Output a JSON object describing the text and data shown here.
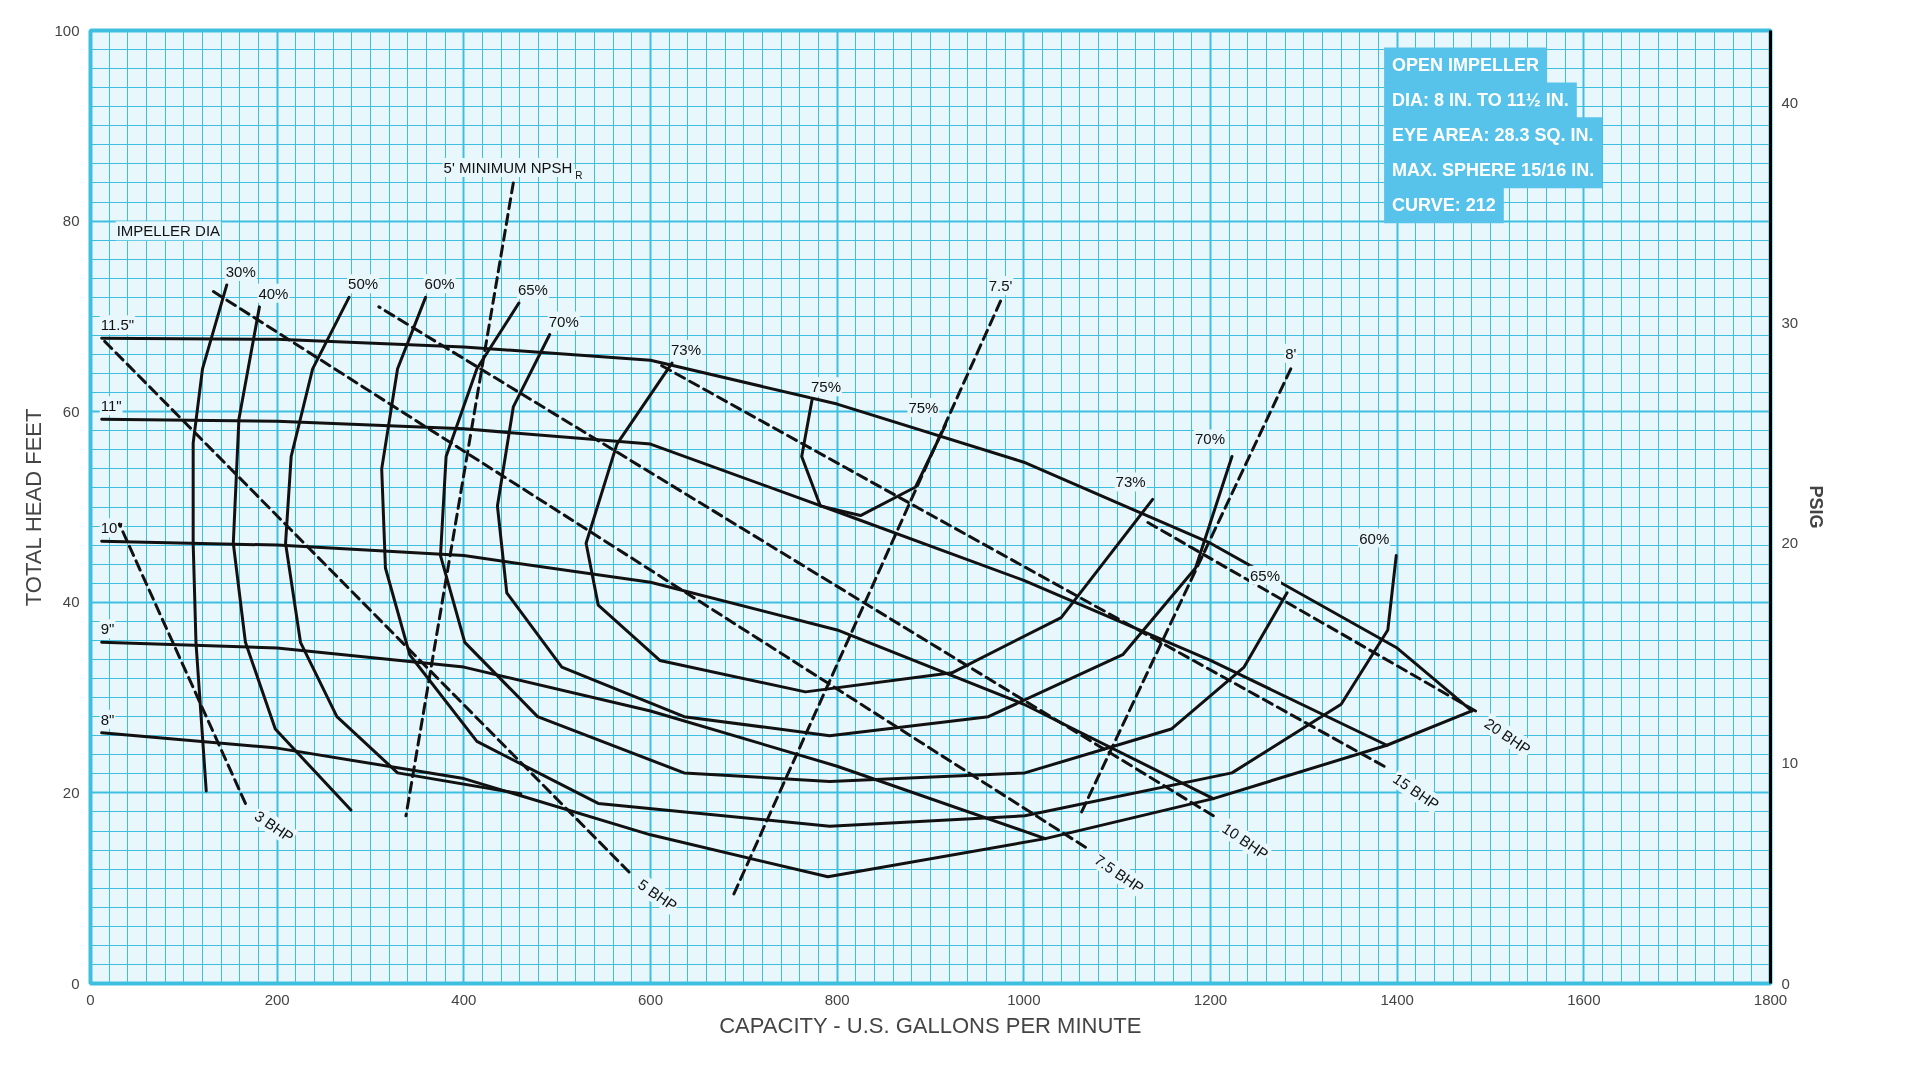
{
  "chart_data": {
    "type": "line",
    "xlabel": "CAPACITY - U.S. GALLONS PER MINUTE",
    "ylabel": "TOTAL HEAD FEET",
    "y2label": "PSIG",
    "xlim": [
      0,
      1800
    ],
    "xticks": [
      0,
      200,
      400,
      600,
      800,
      1000,
      1200,
      1400,
      1600,
      1800
    ],
    "ylim": [
      0,
      100
    ],
    "yticks": [
      0,
      20,
      40,
      60,
      80,
      100
    ],
    "y2lim": [
      0,
      43.3
    ],
    "y2ticks": [
      0,
      10,
      20,
      30,
      40
    ],
    "grid": true,
    "series": [
      {
        "name": "11.5\"",
        "color": "#111111",
        "line_style": "solid",
        "x": [
          12,
          200,
          400,
          600,
          800,
          1000,
          1200,
          1400,
          1480
        ],
        "values": [
          67.7,
          67.6,
          66.8,
          65.4,
          60.8,
          54.7,
          46.2,
          35.2,
          28.6
        ]
      },
      {
        "name": "11\"",
        "color": "#111111",
        "line_style": "solid",
        "x": [
          12,
          200,
          400,
          600,
          800,
          1000,
          1200,
          1389
        ],
        "values": [
          59.2,
          59,
          58.2,
          56.6,
          49.5,
          42.3,
          33.9,
          25.0
        ]
      },
      {
        "name": "10\"",
        "color": "#111111",
        "line_style": "solid",
        "x": [
          12,
          200,
          400,
          600,
          800,
          1000,
          1203
        ],
        "values": [
          46.4,
          46,
          44.9,
          42.1,
          37.1,
          29.3,
          19.4
        ]
      },
      {
        "name": "9\"",
        "color": "#111111",
        "line_style": "solid",
        "x": [
          12,
          200,
          400,
          600,
          800,
          1023
        ],
        "values": [
          35.8,
          35.2,
          33.2,
          28.6,
          22.8,
          15.2
        ]
      },
      {
        "name": "8\"",
        "color": "#111111",
        "line_style": "solid",
        "x": [
          12,
          200,
          400,
          600,
          790,
          1023,
          1203,
          1389,
          1480
        ],
        "values": [
          26.3,
          24.7,
          21.5,
          15.6,
          11.2,
          15.2,
          19.4,
          25.0,
          28.6
        ]
      },
      {
        "name": "30%",
        "color": "#111111",
        "line_style": "solid",
        "x": [
          146,
          120,
          110,
          110,
          113,
          124
        ],
        "values": [
          73.3,
          64.5,
          56.7,
          46.2,
          35.8,
          20.2
        ]
      },
      {
        "name": "40%",
        "color": "#111111",
        "line_style": "solid",
        "x": [
          181,
          159,
          153,
          166,
          198,
          279
        ],
        "values": [
          71,
          59.2,
          46.2,
          35.8,
          26.7,
          18.2
        ]
      },
      {
        "name": "50%",
        "color": "#111111",
        "line_style": "solid",
        "x": [
          277,
          238,
          215,
          209,
          225,
          264,
          329,
          461
        ],
        "values": [
          72,
          64.5,
          55.3,
          46.2,
          35.8,
          28,
          22.1,
          19.9
        ]
      },
      {
        "name": "60%",
        "color": "#111111",
        "line_style": "solid",
        "x": [
          359,
          329,
          312,
          316,
          342,
          414,
          544,
          792,
          1001,
          1223,
          1340,
          1390,
          1399
        ],
        "values": [
          72,
          64.5,
          54,
          43.6,
          34.5,
          25.4,
          18.9,
          16.5,
          17.6,
          22.1,
          29.3,
          37.1,
          44.9
        ]
      },
      {
        "name": "65%",
        "color": "#111111",
        "line_style": "solid",
        "x": [
          459,
          414,
          381,
          375,
          401,
          479,
          636,
          792,
          1001,
          1158,
          1236,
          1282
        ],
        "values": [
          71.4,
          64.5,
          55.3,
          44.9,
          35.8,
          28,
          22.1,
          21.2,
          22.1,
          26.7,
          33.2,
          41
        ]
      },
      {
        "name": "70%",
        "color": "#111111",
        "line_style": "solid",
        "x": [
          492,
          453,
          436,
          446,
          505,
          636,
          792,
          962,
          1106,
          1184,
          1223
        ],
        "values": [
          68.1,
          60.5,
          50.1,
          41,
          33.2,
          28,
          26,
          28,
          34.5,
          43.6,
          55.3
        ]
      },
      {
        "name": "73%",
        "color": "#111111",
        "line_style": "solid",
        "x": [
          623,
          564,
          531,
          544,
          610,
          766,
          923,
          1040,
          1138
        ],
        "values": [
          65.1,
          56.6,
          46.2,
          39.7,
          33.9,
          30.6,
          32.6,
          38.4,
          50.8
        ]
      },
      {
        "name": "75%",
        "color": "#111111",
        "line_style": "solid",
        "x": [
          773,
          762,
          782,
          825,
          884,
          916
        ],
        "values": [
          61.2,
          55.3,
          50.1,
          49.1,
          52.1,
          58.6
        ]
      },
      {
        "name": "3 BHP",
        "color": "#111111",
        "line_style": "dashed",
        "x": [
          166,
          31
        ],
        "values": [
          18.9,
          48.2
        ]
      },
      {
        "name": "5 BHP",
        "color": "#111111",
        "line_style": "dashed",
        "x": [
          577,
          12
        ],
        "values": [
          11.7,
          67.7
        ]
      },
      {
        "name": "7.5 BHP",
        "color": "#111111",
        "line_style": "dashed",
        "x": [
          1066,
          127
        ],
        "values": [
          14.3,
          72.9
        ]
      },
      {
        "name": "10 BHP",
        "color": "#111111",
        "line_style": "dashed",
        "x": [
          1203,
          309
        ],
        "values": [
          17.6,
          71
        ]
      },
      {
        "name": "15 BHP",
        "color": "#111111",
        "line_style": "dashed",
        "x": [
          1386,
          607
        ],
        "values": [
          22.8,
          65.1
        ]
      },
      {
        "name": "20 BHP",
        "color": "#111111",
        "line_style": "dashed",
        "x": [
          1484,
          1129
        ],
        "values": [
          28.6,
          48.6
        ]
      },
      {
        "name": "5' MINIMUM NPSH$_{R}$",
        "color": "#111111",
        "line_style": "dashed",
        "x": [
          453,
          338
        ],
        "values": [
          84,
          17.6
        ]
      },
      {
        "name": "7.5'",
        "color": "#111111",
        "line_style": "dashed",
        "x": [
          975,
          688
        ],
        "values": [
          71.6,
          9.1
        ]
      },
      {
        "name": "8'",
        "color": "#111111",
        "line_style": "dashed",
        "x": [
          1286,
          1060
        ],
        "values": [
          64.5,
          17.6
        ]
      }
    ],
    "annotations": [
      "IMPELLER DIA",
      "OPEN IMPELLER",
      "DIA: 8 IN. TO 11½ IN.",
      "EYE AREA: 28.3 SQ. IN.",
      "MAX. SPHERE 15/16 IN.",
      "CURVE: 212",
      {
        "text": "75%",
        "x": 916,
        "y": 58.6
      },
      {
        "text": "73%",
        "x": 1138,
        "y": 50.8
      },
      {
        "text": "70%",
        "x": 1223,
        "y": 55.3
      },
      {
        "text": "65%",
        "x": 1282,
        "y": 41
      },
      {
        "text": "60%",
        "x": 1399,
        "y": 44.9
      }
    ]
  }
}
